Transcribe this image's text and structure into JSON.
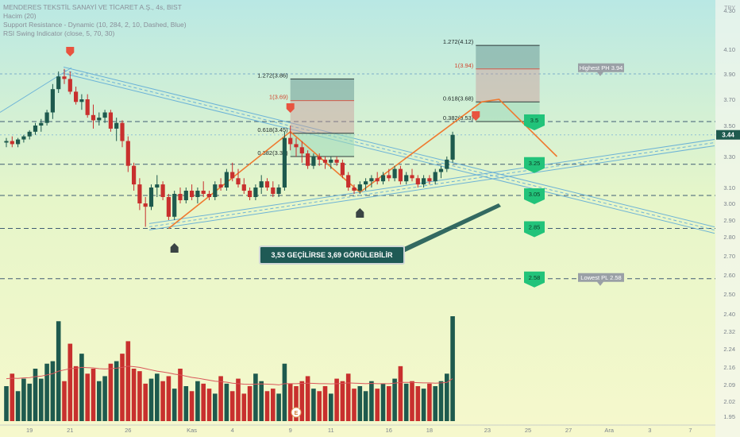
{
  "legend": {
    "symbol": "MENDERES TEKSTİL SANAYİ VE TİCARET A.Ş., 4s, BIST",
    "volume": "Hacim (20)",
    "sr": "Support Resistance - Dynamic (10, 284, 2, 10, Dashed, Blue)",
    "rsi": "RSI Swing Indicator (close, 5, 70, 30)"
  },
  "currency_label": "TRY",
  "current_price": 3.44,
  "current_price_label": "3.44",
  "callout": "3,53 GEÇİLİRSE 3,69 GÖRÜLEBİLİR",
  "price_ticks": [
    {
      "label": "4.30",
      "value": 4.3
    },
    {
      "label": "4.10",
      "value": 4.1
    },
    {
      "label": "3.90",
      "value": 3.9
    },
    {
      "label": "3.70",
      "value": 3.7
    },
    {
      "label": "3.50",
      "value": 3.5
    },
    {
      "label": "3.30",
      "value": 3.3
    },
    {
      "label": "3.10",
      "value": 3.1
    },
    {
      "label": "3.00",
      "value": 3.0
    },
    {
      "label": "2.90",
      "value": 2.9
    },
    {
      "label": "2.80",
      "value": 2.8
    },
    {
      "label": "2.70",
      "value": 2.7
    },
    {
      "label": "2.60",
      "value": 2.6
    },
    {
      "label": "2.50",
      "value": 2.5
    },
    {
      "label": "2.40",
      "value": 2.4
    },
    {
      "label": "2.32",
      "value": 2.32
    },
    {
      "label": "2.24",
      "value": 2.24
    },
    {
      "label": "2.16",
      "value": 2.16
    },
    {
      "label": "2.09",
      "value": 2.09
    },
    {
      "label": "2.02",
      "value": 2.02
    },
    {
      "label": "1.95",
      "value": 1.95
    }
  ],
  "time_labels": [
    {
      "label": "19",
      "bar": 4
    },
    {
      "label": "21",
      "bar": 11
    },
    {
      "label": "26",
      "bar": 21
    },
    {
      "label": "Kas",
      "bar": 32
    },
    {
      "label": "4",
      "bar": 39
    },
    {
      "label": "9",
      "bar": 49
    },
    {
      "label": "11",
      "bar": 56
    },
    {
      "label": "16",
      "bar": 66
    },
    {
      "label": "18",
      "bar": 73
    },
    {
      "label": "23",
      "bar": 83
    },
    {
      "label": "25",
      "bar": 90
    },
    {
      "label": "27",
      "bar": 97
    },
    {
      "label": "Ara",
      "bar": 104
    },
    {
      "label": "3",
      "bar": 111
    },
    {
      "label": "7",
      "bar": 118
    }
  ],
  "levels": [
    {
      "price": 3.9,
      "style": "dashed-light"
    },
    {
      "price": 3.53,
      "style": "dashed-dark"
    },
    {
      "price": 3.44,
      "style": "current"
    },
    {
      "price": 3.25,
      "style": "dashed-dark"
    },
    {
      "price": 3.05,
      "style": "dashed-dark"
    },
    {
      "price": 2.85,
      "style": "dashed-dark"
    },
    {
      "price": 2.58,
      "style": "dashed-dark"
    }
  ],
  "level_tags": [
    {
      "label": "3.5",
      "price": 3.53
    },
    {
      "label": "3.25",
      "price": 3.25
    },
    {
      "label": "3.05",
      "price": 3.05
    },
    {
      "label": "2.85",
      "price": 2.85
    },
    {
      "label": "2.58",
      "price": 2.58
    }
  ],
  "pivot_labels": [
    {
      "label": "Highest PH 3.94",
      "price": 3.94
    },
    {
      "label": "Lowest PL 2.58",
      "price": 2.58
    }
  ],
  "fib_left": {
    "bar_start": 49,
    "bar_end": 60,
    "levels": [
      {
        "label": "1.272(3.86)",
        "price": 3.86
      },
      {
        "label": "1(3.69)",
        "price": 3.69
      },
      {
        "label": "0.618(3.45)",
        "price": 3.45
      },
      {
        "label": "0.382(3.30)",
        "price": 3.3
      }
    ]
  },
  "fib_right": {
    "bar_start": 81,
    "bar_end": 92,
    "levels": [
      {
        "label": "1.272(4.12)",
        "price": 4.12
      },
      {
        "label": "1(3.94)",
        "price": 3.94
      },
      {
        "label": "0.618(3.68)",
        "price": 3.68
      },
      {
        "label": "0.382(3.53)",
        "price": 3.53
      }
    ]
  },
  "chart_data": {
    "type": "candlestick",
    "ohlc": [
      [
        3.39,
        3.42,
        3.36,
        3.4
      ],
      [
        3.4,
        3.43,
        3.36,
        3.38
      ],
      [
        3.38,
        3.42,
        3.36,
        3.41
      ],
      [
        3.41,
        3.44,
        3.39,
        3.43
      ],
      [
        3.43,
        3.47,
        3.41,
        3.46
      ],
      [
        3.46,
        3.52,
        3.44,
        3.5
      ],
      [
        3.5,
        3.55,
        3.46,
        3.52
      ],
      [
        3.52,
        3.62,
        3.5,
        3.6
      ],
      [
        3.6,
        3.82,
        3.55,
        3.78
      ],
      [
        3.78,
        3.92,
        3.75,
        3.88
      ],
      [
        3.88,
        3.94,
        3.82,
        3.86
      ],
      [
        3.86,
        3.92,
        3.74,
        3.76
      ],
      [
        3.76,
        3.8,
        3.66,
        3.68
      ],
      [
        3.68,
        3.74,
        3.62,
        3.7
      ],
      [
        3.7,
        3.74,
        3.56,
        3.58
      ],
      [
        3.58,
        3.66,
        3.48,
        3.54
      ],
      [
        3.54,
        3.6,
        3.5,
        3.56
      ],
      [
        3.56,
        3.62,
        3.52,
        3.6
      ],
      [
        3.6,
        3.62,
        3.46,
        3.48
      ],
      [
        3.48,
        3.56,
        3.4,
        3.52
      ],
      [
        3.52,
        3.54,
        3.36,
        3.4
      ],
      [
        3.4,
        3.43,
        3.2,
        3.24
      ],
      [
        3.24,
        3.26,
        3.08,
        3.12
      ],
      [
        3.12,
        3.16,
        2.96,
        3.0
      ],
      [
        3.0,
        3.04,
        2.86,
        2.98
      ],
      [
        2.98,
        3.12,
        2.96,
        3.1
      ],
      [
        3.1,
        3.18,
        3.04,
        3.12
      ],
      [
        3.12,
        3.14,
        3.02,
        3.04
      ],
      [
        3.04,
        3.06,
        2.9,
        2.92
      ],
      [
        2.92,
        3.08,
        2.9,
        3.06
      ],
      [
        3.06,
        3.1,
        3.0,
        3.02
      ],
      [
        3.02,
        3.1,
        3.0,
        3.08
      ],
      [
        3.08,
        3.12,
        3.02,
        3.04
      ],
      [
        3.04,
        3.1,
        3.0,
        3.08
      ],
      [
        3.08,
        3.14,
        3.04,
        3.06
      ],
      [
        3.06,
        3.08,
        3.02,
        3.04
      ],
      [
        3.04,
        3.14,
        3.02,
        3.12
      ],
      [
        3.12,
        3.16,
        3.08,
        3.1
      ],
      [
        3.1,
        3.22,
        3.08,
        3.2
      ],
      [
        3.2,
        3.26,
        3.14,
        3.16
      ],
      [
        3.16,
        3.22,
        3.1,
        3.12
      ],
      [
        3.12,
        3.16,
        3.06,
        3.08
      ],
      [
        3.08,
        3.1,
        3.02,
        3.04
      ],
      [
        3.04,
        3.12,
        3.02,
        3.1
      ],
      [
        3.1,
        3.18,
        3.06,
        3.14
      ],
      [
        3.14,
        3.16,
        3.08,
        3.1
      ],
      [
        3.1,
        3.14,
        3.04,
        3.06
      ],
      [
        3.06,
        3.12,
        3.04,
        3.1
      ],
      [
        3.1,
        3.46,
        3.08,
        3.42
      ],
      [
        3.42,
        3.5,
        3.34,
        3.38
      ],
      [
        3.38,
        3.42,
        3.3,
        3.36
      ],
      [
        3.36,
        3.4,
        3.26,
        3.32
      ],
      [
        3.32,
        3.34,
        3.22,
        3.24
      ],
      [
        3.24,
        3.32,
        3.22,
        3.3
      ],
      [
        3.3,
        3.32,
        3.24,
        3.28
      ],
      [
        3.28,
        3.3,
        3.22,
        3.26
      ],
      [
        3.26,
        3.3,
        3.22,
        3.28
      ],
      [
        3.28,
        3.3,
        3.24,
        3.26
      ],
      [
        3.26,
        3.28,
        3.16,
        3.18
      ],
      [
        3.18,
        3.2,
        3.08,
        3.1
      ],
      [
        3.1,
        3.12,
        3.06,
        3.08
      ],
      [
        3.08,
        3.14,
        3.06,
        3.12
      ],
      [
        3.12,
        3.16,
        3.08,
        3.14
      ],
      [
        3.14,
        3.18,
        3.1,
        3.16
      ],
      [
        3.16,
        3.2,
        3.12,
        3.14
      ],
      [
        3.14,
        3.2,
        3.12,
        3.18
      ],
      [
        3.18,
        3.22,
        3.14,
        3.16
      ],
      [
        3.16,
        3.24,
        3.14,
        3.22
      ],
      [
        3.22,
        3.24,
        3.12,
        3.14
      ],
      [
        3.14,
        3.2,
        3.12,
        3.18
      ],
      [
        3.18,
        3.22,
        3.14,
        3.16
      ],
      [
        3.16,
        3.18,
        3.1,
        3.12
      ],
      [
        3.12,
        3.18,
        3.1,
        3.16
      ],
      [
        3.16,
        3.18,
        3.12,
        3.14
      ],
      [
        3.14,
        3.22,
        3.12,
        3.2
      ],
      [
        3.2,
        3.24,
        3.16,
        3.22
      ],
      [
        3.22,
        3.3,
        3.2,
        3.28
      ],
      [
        3.28,
        3.46,
        3.26,
        3.44
      ]
    ],
    "volumes": [
      140,
      190,
      120,
      170,
      150,
      210,
      170,
      230,
      240,
      400,
      160,
      310,
      220,
      270,
      190,
      210,
      160,
      180,
      230,
      240,
      270,
      320,
      210,
      200,
      150,
      170,
      190,
      160,
      180,
      130,
      210,
      140,
      120,
      160,
      150,
      130,
      110,
      180,
      150,
      120,
      170,
      110,
      140,
      190,
      160,
      120,
      130,
      110,
      230,
      150,
      140,
      160,
      180,
      130,
      120,
      140,
      110,
      170,
      160,
      190,
      130,
      140,
      120,
      160,
      130,
      150,
      140,
      170,
      220,
      150,
      160,
      140,
      130,
      150,
      140,
      160,
      190,
      420
    ],
    "volume_ma": [
      170,
      172,
      171,
      173,
      174,
      178,
      180,
      185,
      190,
      200,
      205,
      210,
      212,
      215,
      214,
      213,
      210,
      209,
      210,
      212,
      215,
      220,
      218,
      215,
      210,
      205,
      200,
      197,
      193,
      188,
      185,
      180,
      175,
      172,
      168,
      164,
      160,
      158,
      156,
      152,
      150,
      148,
      147,
      148,
      149,
      148,
      147,
      145,
      150,
      150,
      150,
      151,
      152,
      151,
      150,
      150,
      149,
      150,
      151,
      153,
      152,
      151,
      150,
      151,
      150,
      150,
      150,
      152,
      155,
      155,
      155,
      154,
      153,
      153,
      152,
      153,
      155,
      170
    ]
  },
  "colors": {
    "up": "#1e5a4e",
    "down": "#c8302e",
    "orange": "#ef7a30",
    "blue": "#5aa8d8",
    "dashed": "#2f4d6b"
  }
}
